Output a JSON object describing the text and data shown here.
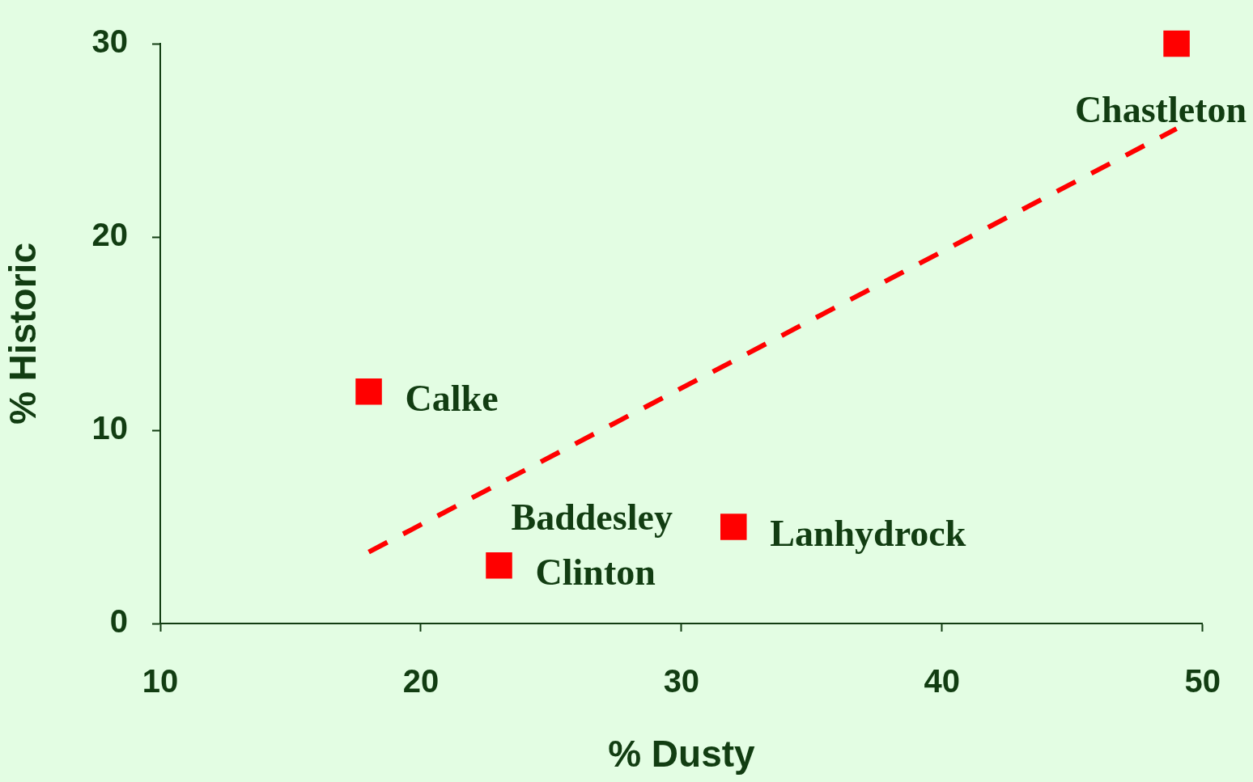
{
  "chart_data": {
    "type": "scatter",
    "xlabel": "% Dusty",
    "ylabel": "% Historic",
    "xlim": [
      10,
      50
    ],
    "ylim": [
      0,
      30
    ],
    "xticks": [
      10,
      20,
      30,
      40,
      50
    ],
    "yticks": [
      0,
      10,
      20,
      30
    ],
    "marker": "square",
    "series": [
      {
        "type": "scatter",
        "color": "#ff0000",
        "x": [
          18,
          23,
          32,
          49
        ],
        "values": [
          12,
          3,
          5,
          30
        ]
      },
      {
        "type": "line",
        "color": "#ff0000",
        "line_style": "dashed",
        "marker": "none",
        "x": [
          18,
          49
        ],
        "values": [
          3.7,
          25.6
        ]
      }
    ],
    "annotations": [
      {
        "text": "Chastleton",
        "x": 49,
        "y": 30
      },
      {
        "text": "Calke",
        "x": 18,
        "y": 12
      },
      {
        "text": "Clinton",
        "x": 23,
        "y": 3
      },
      {
        "text": "Baddesley",
        "x": 23,
        "y": 3
      },
      {
        "text": "Lanhydrock",
        "x": 32,
        "y": 5
      }
    ]
  }
}
